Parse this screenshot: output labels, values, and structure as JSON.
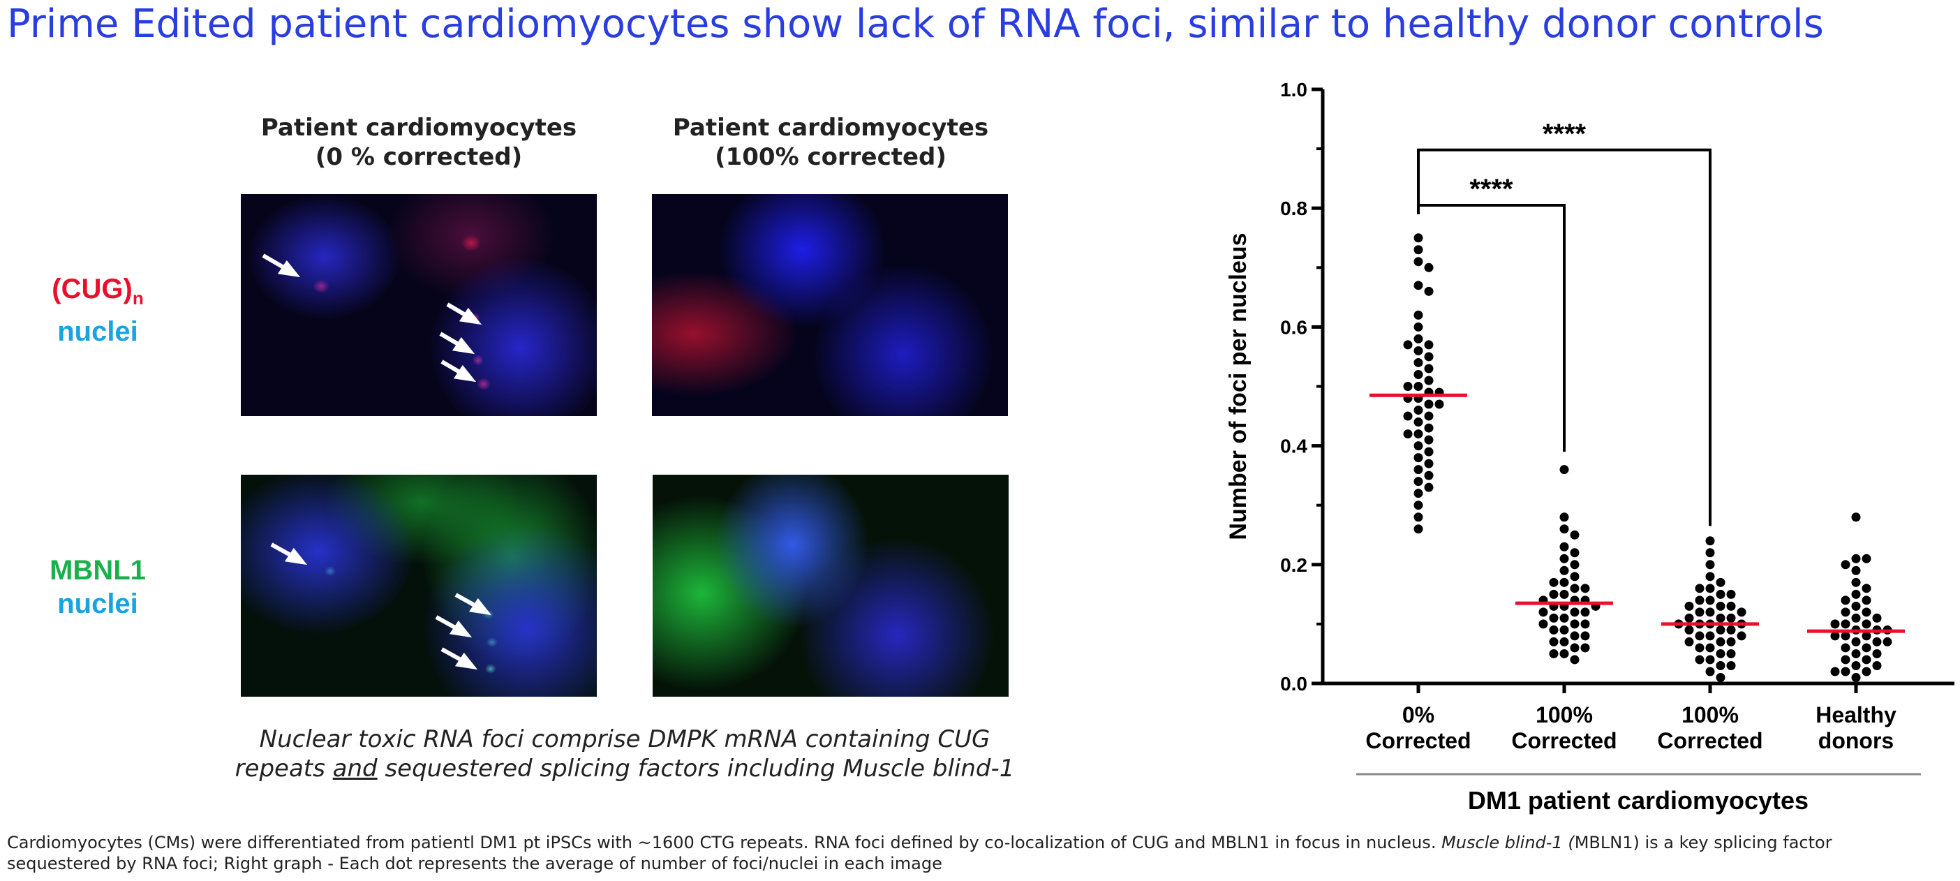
{
  "title": "Prime Edited patient cardiomyocytes show lack of RNA foci, similar to healthy donor controls",
  "panels": {
    "col1_line1": "Patient cardiomyocytes",
    "col1_line2": "(0 % corrected)",
    "col2_line1": "Patient cardiomyocytes",
    "col2_line2": "(100% corrected)",
    "row1_label_main": "(CUG)",
    "row1_label_sub": "n",
    "row1_label_line2": "nuclei",
    "row2_label_line1": "MBNL1",
    "row2_label_line2": "nuclei"
  },
  "caption": {
    "line1": "Nuclear toxic RNA foci comprise DMPK mRNA containing CUG",
    "line2_pre": "repeats ",
    "line2_underlined": "and",
    "line2_post": " sequestered splicing factors including Muscle blind-1"
  },
  "footnote": {
    "part1": "Cardiomyocytes (CMs) were differentiated from patientl DM1 pt iPSCs with ~1600 CTG repeats. RNA foci defined by co-localization of CUG and MBLN1 in focus in nucleus. ",
    "italic": "Muscle blind-1 (",
    "part2": "MBLN1) is a key splicing factor sequestered by RNA foci; Right graph - Each dot represents the average of number of foci/nuclei in each image"
  },
  "colors": {
    "title": "#2a3ee0",
    "cug": "#e8102a",
    "nuclei": "#1aa3e0",
    "mbnl1": "#19b04b",
    "median_line": "#e8102a",
    "dots": "#000000"
  },
  "chart_data": {
    "type": "scatter",
    "subtype": "dot plot with median lines",
    "ylabel": "Number of foci per nucleus",
    "xlabel": "DM1 patient cardiomyocytes",
    "ylim": [
      0,
      1.0
    ],
    "yticks": [
      "0.0",
      "0.2",
      "0.4",
      "0.6",
      "0.8",
      "1.0"
    ],
    "categories": [
      {
        "line1": "0%",
        "line2": "Corrected"
      },
      {
        "line1": "100%",
        "line2": "Corrected"
      },
      {
        "line1": "100%",
        "line2": "Corrected"
      },
      {
        "line1": "Healthy",
        "line2": "donors"
      }
    ],
    "medians": [
      0.485,
      0.135,
      0.1,
      0.088
    ],
    "series": [
      {
        "name": "0% Corrected",
        "values": [
          0.75,
          0.73,
          0.71,
          0.7,
          0.67,
          0.66,
          0.62,
          0.6,
          0.58,
          0.57,
          0.57,
          0.56,
          0.55,
          0.54,
          0.53,
          0.52,
          0.51,
          0.5,
          0.5,
          0.49,
          0.49,
          0.48,
          0.48,
          0.47,
          0.47,
          0.46,
          0.45,
          0.45,
          0.44,
          0.43,
          0.42,
          0.42,
          0.41,
          0.4,
          0.39,
          0.38,
          0.37,
          0.36,
          0.35,
          0.34,
          0.33,
          0.32,
          0.3,
          0.28,
          0.26
        ]
      },
      {
        "name": "100% Corrected",
        "values": [
          0.36,
          0.28,
          0.26,
          0.25,
          0.23,
          0.22,
          0.21,
          0.2,
          0.19,
          0.18,
          0.17,
          0.17,
          0.16,
          0.16,
          0.15,
          0.15,
          0.14,
          0.14,
          0.14,
          0.13,
          0.13,
          0.13,
          0.12,
          0.12,
          0.12,
          0.11,
          0.11,
          0.1,
          0.1,
          0.1,
          0.09,
          0.09,
          0.08,
          0.08,
          0.07,
          0.07,
          0.06,
          0.06,
          0.05,
          0.05,
          0.04
        ]
      },
      {
        "name": "100% Corrected",
        "values": [
          0.24,
          0.22,
          0.2,
          0.18,
          0.17,
          0.16,
          0.16,
          0.15,
          0.15,
          0.14,
          0.14,
          0.13,
          0.13,
          0.13,
          0.12,
          0.12,
          0.12,
          0.11,
          0.11,
          0.11,
          0.1,
          0.1,
          0.1,
          0.1,
          0.09,
          0.09,
          0.09,
          0.08,
          0.08,
          0.08,
          0.07,
          0.07,
          0.07,
          0.06,
          0.06,
          0.05,
          0.05,
          0.04,
          0.04,
          0.03,
          0.03,
          0.02,
          0.01
        ]
      },
      {
        "name": "Healthy donors",
        "values": [
          0.28,
          0.21,
          0.21,
          0.2,
          0.19,
          0.17,
          0.16,
          0.15,
          0.14,
          0.14,
          0.13,
          0.12,
          0.12,
          0.11,
          0.11,
          0.1,
          0.1,
          0.1,
          0.09,
          0.09,
          0.09,
          0.08,
          0.08,
          0.08,
          0.07,
          0.07,
          0.07,
          0.06,
          0.06,
          0.05,
          0.05,
          0.04,
          0.04,
          0.03,
          0.03,
          0.02,
          0.02,
          0.02,
          0.01
        ]
      }
    ],
    "significance": [
      {
        "from": 0,
        "to": 1,
        "label": "****"
      },
      {
        "from": 0,
        "to": 2,
        "label": "****"
      }
    ]
  }
}
